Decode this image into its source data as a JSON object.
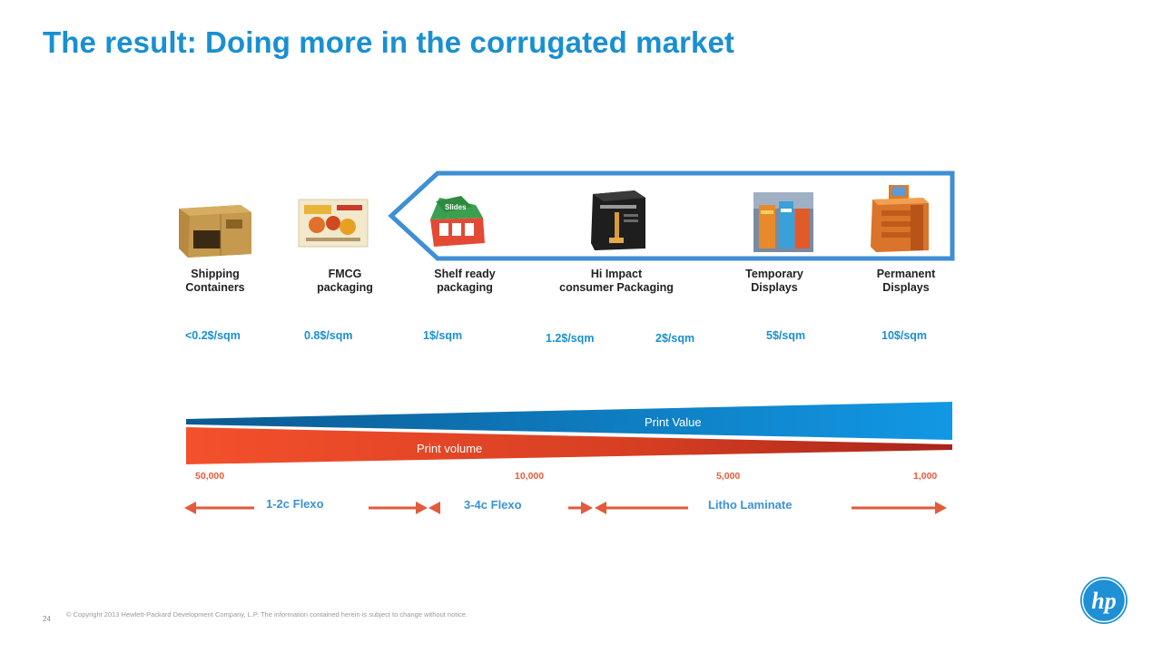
{
  "title": "The result: Doing more in the corrugated market",
  "products": [
    {
      "line1": "Shipping",
      "line2": "Containers",
      "image_icon": "shipping-box-icon"
    },
    {
      "line1": "FMCG",
      "line2": "packaging",
      "image_icon": "fmcg-package-icon"
    },
    {
      "line1": "Shelf ready",
      "line2": "packaging",
      "image_icon": "shelf-ready-tray-icon"
    },
    {
      "line1": "Hi Impact",
      "line2": "consumer Packaging",
      "image_icon": "consumer-box-icon"
    },
    {
      "line1": "Temporary",
      "line2": "Displays",
      "image_icon": "temporary-display-icon"
    },
    {
      "line1": "Permanent",
      "line2": "Displays",
      "image_icon": "permanent-display-icon"
    }
  ],
  "prices": [
    "<0.2$/sqm",
    "0.8$/sqm",
    "1$/sqm",
    "1.2$/sqm",
    "2$/sqm",
    "5$/sqm",
    "10$/sqm"
  ],
  "print_value_label": "Print Value",
  "print_volume_label": "Print volume",
  "volumes": [
    "50,000",
    "10,000",
    "5,000",
    "1,000"
  ],
  "technologies": [
    "1-2c Flexo",
    "3-4c Flexo",
    "Litho Laminate"
  ],
  "colors": {
    "title": "#1a8fd1",
    "frame": "#3f8fd4",
    "value_wedge": "#1190de",
    "volume_wedge": "#e24a28",
    "arrow": "#e35a3c"
  },
  "footer": {
    "page_number": "24",
    "copyright": "© Copyright 2013 Hewlett-Packard Development Company, L.P.  The information contained herein is subject to change without notice."
  },
  "logo_text": "hp"
}
